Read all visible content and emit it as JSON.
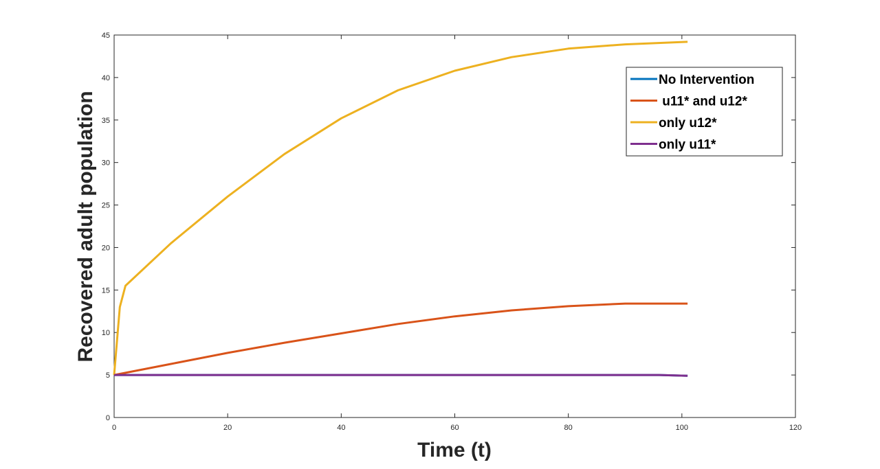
{
  "chart_data": {
    "type": "line",
    "title": "",
    "xlabel": "Time (t)",
    "ylabel": "Recovered adult population",
    "xlim": [
      0,
      120
    ],
    "ylim": [
      0,
      45
    ],
    "xticks": [
      "0",
      "20",
      "40",
      "60",
      "80",
      "100",
      "120"
    ],
    "yticks": [
      "0",
      "5",
      "10",
      "15",
      "20",
      "25",
      "30",
      "35",
      "40",
      "45"
    ],
    "grid": false,
    "legend_position": "top-right",
    "series": [
      {
        "name": "No Intervention",
        "color": "#0072BD",
        "points": [
          [
            0,
            5
          ],
          [
            96,
            5
          ],
          [
            101,
            4.9
          ]
        ]
      },
      {
        "name": " u11* and u12*",
        "color": "#D95319",
        "points": [
          [
            0,
            5
          ],
          [
            10,
            6.3
          ],
          [
            20,
            7.6
          ],
          [
            30,
            8.8
          ],
          [
            40,
            9.9
          ],
          [
            50,
            11
          ],
          [
            60,
            11.9
          ],
          [
            70,
            12.6
          ],
          [
            80,
            13.1
          ],
          [
            90,
            13.4
          ],
          [
            101,
            13.4
          ]
        ]
      },
      {
        "name": "only u12*",
        "color": "#EDB120",
        "points": [
          [
            0,
            5
          ],
          [
            1,
            13
          ],
          [
            2,
            15.5
          ],
          [
            10,
            20.5
          ],
          [
            20,
            26
          ],
          [
            30,
            31
          ],
          [
            40,
            35.2
          ],
          [
            50,
            38.5
          ],
          [
            60,
            40.8
          ],
          [
            70,
            42.4
          ],
          [
            80,
            43.4
          ],
          [
            90,
            43.9
          ],
          [
            101,
            44.2
          ]
        ]
      },
      {
        "name": "only u11*",
        "color": "#7E2F8E",
        "points": [
          [
            0,
            5
          ],
          [
            96,
            5
          ],
          [
            101,
            4.9
          ]
        ]
      }
    ]
  }
}
